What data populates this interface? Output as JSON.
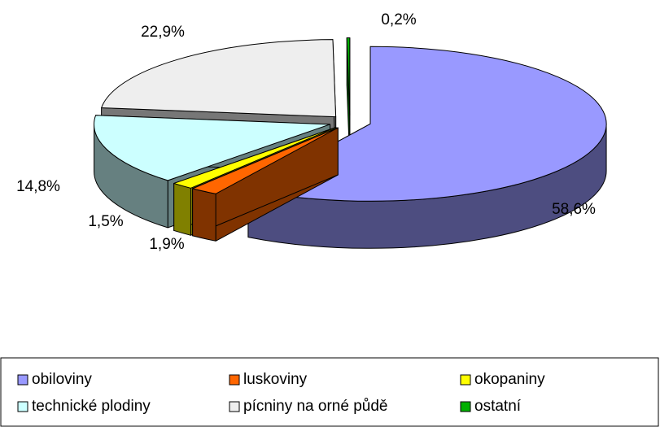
{
  "chart_data": {
    "type": "pie",
    "three_d": true,
    "exploded": true,
    "categories": [
      "obiloviny",
      "luskoviny",
      "okopaniny",
      "technické plodiny",
      "pícniny na orné půdě",
      "ostatní"
    ],
    "values": [
      58.6,
      1.9,
      1.5,
      14.8,
      22.9,
      0.2
    ],
    "value_labels": [
      "58,6%",
      "1,9%",
      "1,5%",
      "14,8%",
      "22,9%",
      "0,2%"
    ],
    "colors": [
      "#9999ff",
      "#ff6600",
      "#ffff00",
      "#ccffff",
      "#eeeeee",
      "#00b000"
    ],
    "legend": "bottom"
  }
}
